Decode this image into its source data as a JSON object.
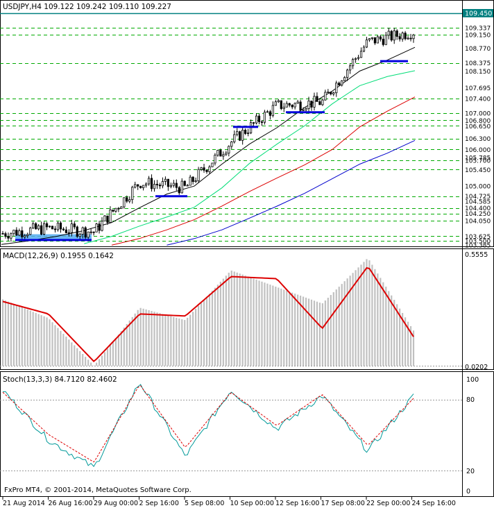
{
  "colors": {
    "background": "#ffffff",
    "frame": "#000000",
    "grid_dash": "#00aa00",
    "price_line": "#008080",
    "price_box": "#008080",
    "candle": "#000000",
    "ma_black": "#000000",
    "ma_green": "#00dd77",
    "ma_red": "#dd0000",
    "ma_blue": "#0000cc",
    "support": "#0000dd",
    "highlight": "#55aaee",
    "macd_hist": "#c0c0c0",
    "macd_signal": "#dd0000",
    "stoch_main": "#009999",
    "stoch_signal": "#dd0000"
  },
  "price_panel": {
    "title": "USDJPY,H4  109.122 109.242 109.110 109.227",
    "current_price": "109.450",
    "axis_labels": [
      "109.337",
      "109.150",
      "108.770",
      "108.375",
      "108.150",
      "107.695",
      "107.400",
      "107.000",
      "106.800",
      "106.650",
      "106.300",
      "106.000",
      "105.785",
      "105.700",
      "105.450",
      "105.000",
      "104.725",
      "104.585",
      "104.400",
      "104.250",
      "104.050",
      "103.625",
      "103.500",
      "103.385"
    ],
    "levels_dashed": [
      "109.337",
      "109.150",
      "108.375",
      "107.400",
      "107.000",
      "106.800",
      "106.650",
      "106.300",
      "106.000",
      "105.700",
      "105.450",
      "104.725",
      "104.400",
      "104.250",
      "104.050",
      "103.625",
      "103.500"
    ]
  },
  "macd_panel": {
    "title": "MACD(12,26,9) 0.1955 0.1642",
    "axis_labels": [
      "0.5555",
      "0.0202"
    ]
  },
  "stoch_panel": {
    "title": "Stoch(13,3,3) 84.7120 82.4602",
    "axis_labels": [
      "100",
      "80",
      "20",
      "0"
    ]
  },
  "copyright": "FxPro MT4, © 2001-2014, MetaQuotes Software Corp.",
  "x_axis_labels": [
    "21 Aug 2014",
    "26 Aug 16:00",
    "29 Aug 00:00",
    "2 Sep 16:00",
    "5 Sep 08:00",
    "10 Sep 00:00",
    "12 Sep 16:00",
    "17 Sep 08:00",
    "22 Sep 00:00",
    "24 Sep 16:00"
  ],
  "chart_data": [
    {
      "type": "candlestick",
      "title": "USDJPY,H4  109.122 109.242 109.110 109.227",
      "ylim": [
        103.385,
        109.55
      ],
      "close_path": [
        {
          "x": "21 Aug 2014",
          "y": 103.7
        },
        {
          "x": "26 Aug 16:00",
          "y": 103.85
        },
        {
          "x": "29 Aug 00:00",
          "y": 103.75
        },
        {
          "x": "2 Sep 16:00",
          "y": 105.1
        },
        {
          "x": "5 Sep 08:00",
          "y": 104.95
        },
        {
          "x": "10 Sep 00:00",
          "y": 106.2
        },
        {
          "x": "12 Sep 16:00",
          "y": 107.2
        },
        {
          "x": "17 Sep 08:00",
          "y": 107.3
        },
        {
          "x": "22 Sep 00:00",
          "y": 108.95
        },
        {
          "x": "24 Sep 16:00",
          "y": 109.227
        }
      ],
      "series": [
        {
          "name": "",
          "color": "#000000",
          "points": [
            [
              0,
              103.4
            ],
            [
              10,
              103.5
            ],
            [
              20,
              103.62
            ],
            [
              30,
              103.78
            ],
            [
              40,
              104.0
            ],
            [
              50,
              104.4
            ],
            [
              60,
              104.78
            ],
            [
              70,
              105.0
            ],
            [
              80,
              105.6
            ],
            [
              90,
              106.15
            ],
            [
              100,
              106.6
            ],
            [
              110,
              107.15
            ],
            [
              120,
              107.6
            ],
            [
              130,
              108.15
            ],
            [
              140,
              108.45
            ],
            [
              150,
              108.8
            ]
          ]
        },
        {
          "name": "",
          "color": "#00dd77",
          "points": [
            [
              30,
              103.42
            ],
            [
              40,
              103.62
            ],
            [
              50,
              103.9
            ],
            [
              60,
              104.15
            ],
            [
              70,
              104.42
            ],
            [
              80,
              104.95
            ],
            [
              90,
              105.62
            ],
            [
              100,
              106.15
            ],
            [
              110,
              106.65
            ],
            [
              120,
              107.25
            ],
            [
              130,
              107.75
            ],
            [
              140,
              108.0
            ],
            [
              150,
              108.16
            ]
          ]
        },
        {
          "name": "",
          "color": "#dd0000",
          "points": [
            [
              40,
              103.38
            ],
            [
              50,
              103.56
            ],
            [
              60,
              103.8
            ],
            [
              70,
              104.08
            ],
            [
              80,
              104.45
            ],
            [
              90,
              104.85
            ],
            [
              100,
              105.22
            ],
            [
              110,
              105.58
            ],
            [
              120,
              106.0
            ],
            [
              130,
              106.62
            ],
            [
              140,
              107.05
            ],
            [
              150,
              107.44
            ]
          ]
        },
        {
          "name": "",
          "color": "#0000cc",
          "points": [
            [
              60,
              103.38
            ],
            [
              70,
              103.56
            ],
            [
              80,
              103.8
            ],
            [
              90,
              104.12
            ],
            [
              100,
              104.45
            ],
            [
              110,
              104.8
            ],
            [
              120,
              105.2
            ],
            [
              130,
              105.6
            ],
            [
              140,
              105.9
            ],
            [
              150,
              106.25
            ]
          ]
        }
      ]
    },
    {
      "type": "bar",
      "title": "MACD(12,26,9) 0.1955 0.1642",
      "ylim": [
        0.0202,
        0.5555
      ],
      "categories": [
        "21 Aug 2014",
        "26 Aug 16:00",
        "29 Aug 00:00",
        "2 Sep 16:00",
        "5 Sep 08:00",
        "10 Sep 00:00",
        "12 Sep 16:00",
        "17 Sep 08:00",
        "22 Sep 00:00",
        "24 Sep 16:00"
      ],
      "series": [
        {
          "name": "",
          "values": [
            0.34,
            0.25,
            0.02,
            0.3,
            0.24,
            0.48,
            0.4,
            0.32,
            0.54,
            0.19
          ]
        },
        {
          "name": "",
          "values": [
            0.33,
            0.27,
            0.04,
            0.27,
            0.26,
            0.45,
            0.44,
            0.2,
            0.5,
            0.16
          ]
        }
      ]
    },
    {
      "type": "line",
      "title": "Stoch(13,3,3) 84.7120 82.4602",
      "ylim": [
        0,
        100
      ],
      "categories": [
        "21 Aug 2014",
        "26 Aug 16:00",
        "29 Aug 00:00",
        "2 Sep 16:00",
        "5 Sep 08:00",
        "10 Sep 00:00",
        "12 Sep 16:00",
        "17 Sep 08:00",
        "22 Sep 00:00",
        "24 Sep 16:00"
      ],
      "series": [
        {
          "name": "",
          "values": [
            90,
            45,
            20,
            97,
            30,
            90,
            55,
            85,
            35,
            84.7
          ]
        },
        {
          "name": "",
          "values": [
            88,
            50,
            25,
            95,
            38,
            88,
            58,
            86,
            40,
            82.5
          ]
        }
      ]
    }
  ]
}
